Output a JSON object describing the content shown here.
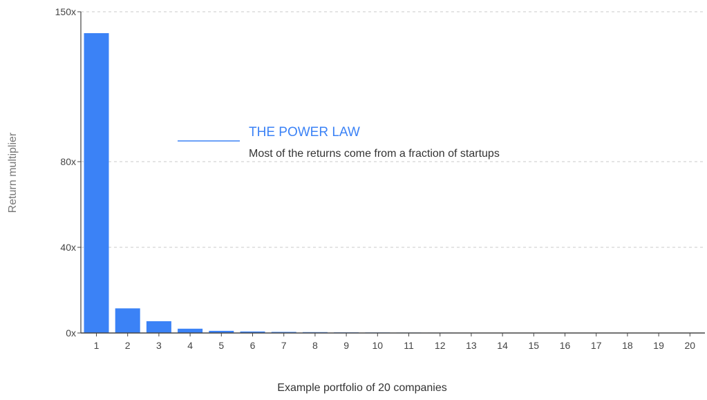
{
  "colors": {
    "bar": "#3b82f6",
    "annotation": "#3b82f6",
    "grid": "#c8c8c8",
    "axis": "#444444"
  },
  "chart_data": {
    "type": "bar",
    "xlabel": "Example portfolio of 20 companies",
    "ylabel": "Return multiplier",
    "categories": [
      "1",
      "2",
      "3",
      "4",
      "5",
      "6",
      "7",
      "8",
      "9",
      "10",
      "11",
      "12",
      "13",
      "14",
      "15",
      "16",
      "17",
      "18",
      "19",
      "20"
    ],
    "values": [
      140,
      11.5,
      5.5,
      2,
      1,
      0.7,
      0.5,
      0.4,
      0.3,
      0.25,
      0.2,
      0.18,
      0.15,
      0.12,
      0.1,
      0.1,
      0.08,
      0.07,
      0.06,
      0.05
    ],
    "y_ticks": [
      0,
      40,
      80,
      150
    ],
    "y_tick_labels": [
      "0x",
      "40x",
      "80x",
      "150x"
    ],
    "ylim": [
      0,
      150
    ],
    "grid": true,
    "annotation": {
      "title": "THE POWER LAW",
      "subtitle": "Most of the returns come from a fraction of startups"
    }
  }
}
